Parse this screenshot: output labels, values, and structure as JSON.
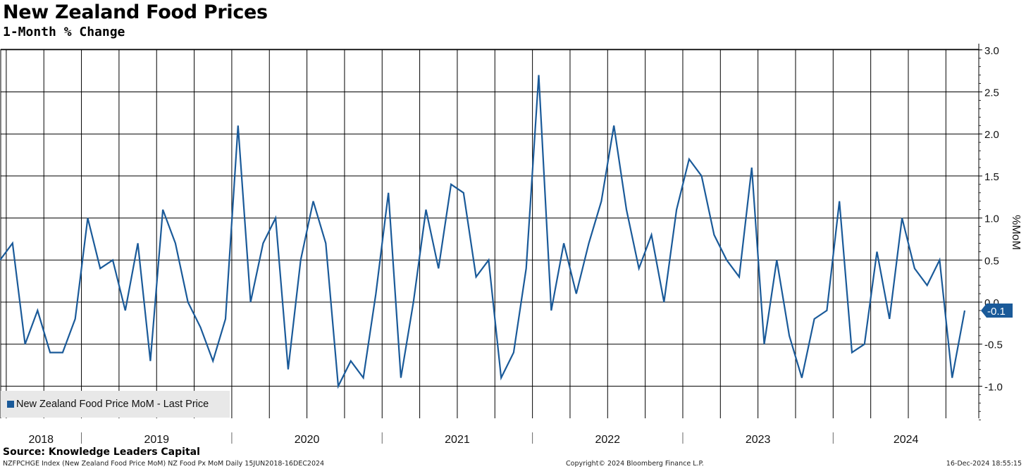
{
  "header": {
    "title": "New Zealand Food Prices",
    "subtitle": "1-Month % Change"
  },
  "footer": {
    "source": "Source: Knowledge Leaders Capital",
    "index_info": "NZFPCHGE Index (New Zealand Food Price MoM) NZ Food Px MoM  Daily 15JUN2018-16DEC2024",
    "copyright": "Copyright© 2024 Bloomberg Finance L.P.",
    "timestamp": "16-Dec-2024 18:55:15"
  },
  "colors": {
    "line": "#1a5a99",
    "last_value_badge": "#1a5a99",
    "grid": "#000000",
    "legend_bg": "#e8e8e8"
  },
  "chart_data": {
    "type": "line",
    "title": "New Zealand Food Prices",
    "subtitle": "1-Month % Change",
    "ylabel": "%MoM",
    "xlabel": "",
    "ylim": [
      -1.4,
      3.1
    ],
    "yticks": [
      3.0,
      2.5,
      2.0,
      1.5,
      1.0,
      0.5,
      0.0,
      -0.5,
      -1.0
    ],
    "ytick_labels": [
      "3.0",
      "2.5",
      "2.0",
      "1.5",
      "1.0",
      "0.5",
      "0.0",
      "-0.5",
      "-1.0"
    ],
    "x_year_labels": [
      "2018",
      "2019",
      "2020",
      "2021",
      "2022",
      "2023",
      "2024"
    ],
    "grid": true,
    "legend_position": "bottom-left",
    "last_value_label": "-0.1",
    "series": [
      {
        "name": "New Zealand Food Price MoM - Last Price",
        "x": [
          "2018-06",
          "2018-07",
          "2018-08",
          "2018-09",
          "2018-10",
          "2018-11",
          "2018-12",
          "2019-01",
          "2019-02",
          "2019-03",
          "2019-04",
          "2019-05",
          "2019-06",
          "2019-07",
          "2019-08",
          "2019-09",
          "2019-10",
          "2019-11",
          "2019-12",
          "2020-01",
          "2020-02",
          "2020-03",
          "2020-04",
          "2020-05",
          "2020-06",
          "2020-07",
          "2020-08",
          "2020-09",
          "2020-10",
          "2020-11",
          "2020-12",
          "2021-01",
          "2021-02",
          "2021-03",
          "2021-04",
          "2021-05",
          "2021-06",
          "2021-07",
          "2021-08",
          "2021-09",
          "2021-10",
          "2021-11",
          "2021-12",
          "2022-01",
          "2022-02",
          "2022-03",
          "2022-04",
          "2022-05",
          "2022-06",
          "2022-07",
          "2022-08",
          "2022-09",
          "2022-10",
          "2022-11",
          "2022-12",
          "2023-01",
          "2023-02",
          "2023-03",
          "2023-04",
          "2023-05",
          "2023-06",
          "2023-07",
          "2023-08",
          "2023-09",
          "2023-10",
          "2023-11",
          "2023-12",
          "2024-01",
          "2024-02",
          "2024-03",
          "2024-04",
          "2024-05",
          "2024-06",
          "2024-07",
          "2024-08",
          "2024-09",
          "2024-10",
          "2024-11"
        ],
        "values": [
          0.5,
          0.7,
          -0.5,
          -0.1,
          -0.6,
          -0.6,
          -0.2,
          1.0,
          0.4,
          0.5,
          -0.1,
          0.7,
          -0.7,
          1.1,
          0.7,
          0.0,
          -0.3,
          -0.7,
          -0.2,
          2.1,
          0.0,
          0.7,
          1.0,
          -0.8,
          0.5,
          1.2,
          0.7,
          -1.0,
          -0.7,
          -0.9,
          0.1,
          1.3,
          -0.9,
          0.0,
          1.1,
          0.4,
          1.4,
          1.3,
          0.3,
          0.5,
          -0.9,
          -0.6,
          0.4,
          2.7,
          -0.1,
          0.7,
          0.1,
          0.7,
          1.2,
          2.1,
          1.1,
          0.4,
          0.8,
          0.0,
          1.1,
          1.7,
          1.5,
          0.8,
          0.5,
          0.3,
          1.6,
          -0.5,
          0.5,
          -0.4,
          -0.9,
          -0.2,
          -0.1,
          1.2,
          -0.6,
          -0.5,
          0.6,
          -0.2,
          1.0,
          0.4,
          0.2,
          0.5,
          -0.9,
          -0.1
        ]
      }
    ]
  }
}
